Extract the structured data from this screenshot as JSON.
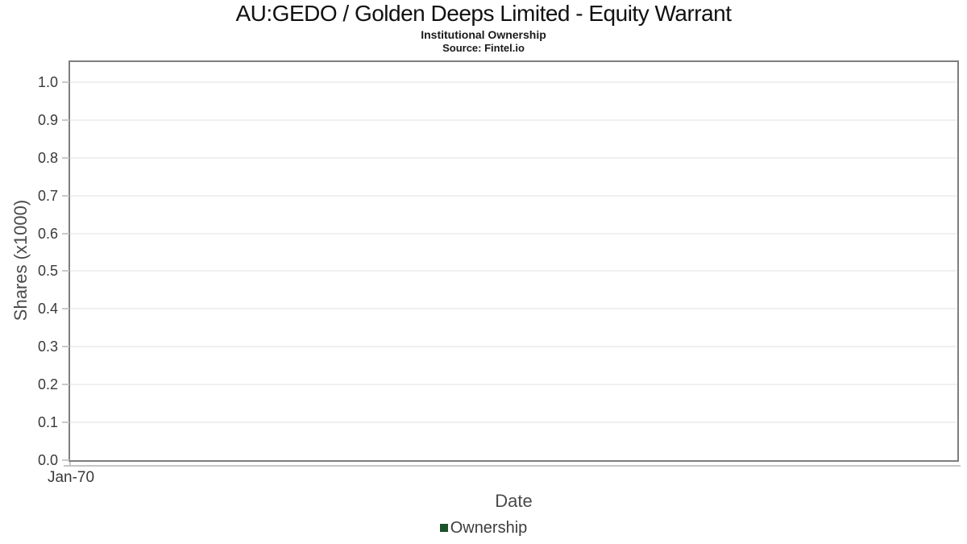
{
  "chart_data": {
    "type": "line",
    "title": "AU:GEDO / Golden Deeps Limited - Equity Warrant",
    "subtitle": "Institutional Ownership",
    "source": "Source: Fintel.io",
    "xlabel": "Date",
    "ylabel": "Shares (x1000)",
    "x_ticks": [
      "Jan-70"
    ],
    "y_ticks": [
      1.0,
      0.9,
      0.8,
      0.7,
      0.6,
      0.5,
      0.4,
      0.3,
      0.2,
      0.1,
      0.0
    ],
    "y_tick_labels": [
      "1.0",
      "0.9",
      "0.8",
      "0.7",
      "0.6",
      "0.5",
      "0.4",
      "0.3",
      "0.2",
      "0.1",
      "0.0"
    ],
    "ylim": [
      0,
      1.053
    ],
    "grid": true,
    "legend_position": "bottom-center",
    "legend": [
      {
        "label": "Ownership",
        "color": "#1d5128"
      }
    ],
    "series": [
      {
        "name": "Ownership",
        "x": [],
        "values": []
      }
    ],
    "colors": {
      "plot_border": "#7e7e7e",
      "gridline": "#e0e0e0",
      "tick": "#c9c9c9",
      "title_text": "#111111",
      "tick_label_text": "#3a3a3a",
      "axis_title_text": "#4b4b4b",
      "series_ownership": "#1d5128"
    }
  }
}
